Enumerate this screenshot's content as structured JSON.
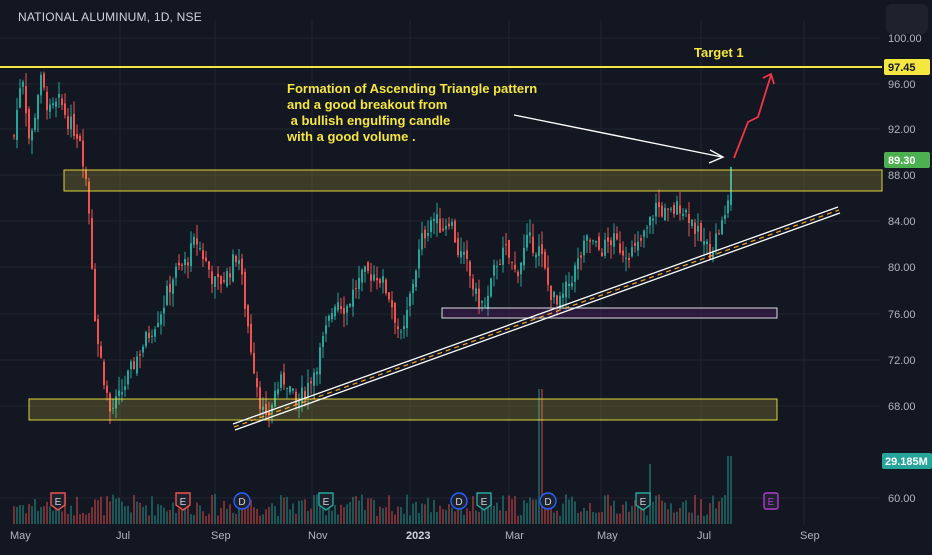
{
  "header": {
    "symbol": "NATIONAL ALUMINUM, 1D, NSE"
  },
  "chart_data": {
    "type": "candlestick",
    "y_axis_ticks": [
      "100.00",
      "96.00",
      "92.00",
      "88.00",
      "84.00",
      "80.00",
      "76.00",
      "72.00",
      "68.00",
      "60.00"
    ],
    "x_axis_ticks": [
      "May",
      "Jul",
      "Sep",
      "Nov",
      "2023",
      "Mar",
      "May",
      "Jul",
      "Sep"
    ],
    "price_tags": {
      "target": {
        "label": "97.45",
        "color": "#f5e642"
      },
      "last": {
        "label": "89.30",
        "color": "#4caf50"
      },
      "volume": {
        "label": "29.185M",
        "color": "#26a69a"
      }
    },
    "annotations": {
      "target_label": "Target 1",
      "note_lines": [
        "Formation of Ascending Triangle pattern",
        "and a good breakout from",
        " a bullish engulfing candle",
        "with a good volume ."
      ]
    },
    "levels": {
      "target": 97.45,
      "resistance_zone": [
        86.6,
        88.5
      ],
      "support_zone": [
        66.6,
        68.4
      ],
      "minor_zone": [
        75.7,
        76.5
      ]
    },
    "trendline": {
      "from": {
        "price": 66.4
      },
      "to": {
        "price": 85.0
      }
    },
    "event_markers": [
      {
        "label": "E",
        "kind": "earnings"
      },
      {
        "label": "E",
        "kind": "earnings"
      },
      {
        "label": "D",
        "kind": "dividend"
      },
      {
        "label": "E",
        "kind": "earnings"
      },
      {
        "label": "D",
        "kind": "dividend"
      },
      {
        "label": "E",
        "kind": "earnings"
      },
      {
        "label": "D",
        "kind": "dividend"
      },
      {
        "label": "E",
        "kind": "earnings"
      },
      {
        "label": "E",
        "kind": "upcoming"
      }
    ],
    "colors": {
      "up": "#26a69a",
      "down": "#ef5350",
      "line": "#f5e642",
      "trend": "#ffffff",
      "zone": "#f5e642",
      "arrow": "#f23645"
    }
  }
}
